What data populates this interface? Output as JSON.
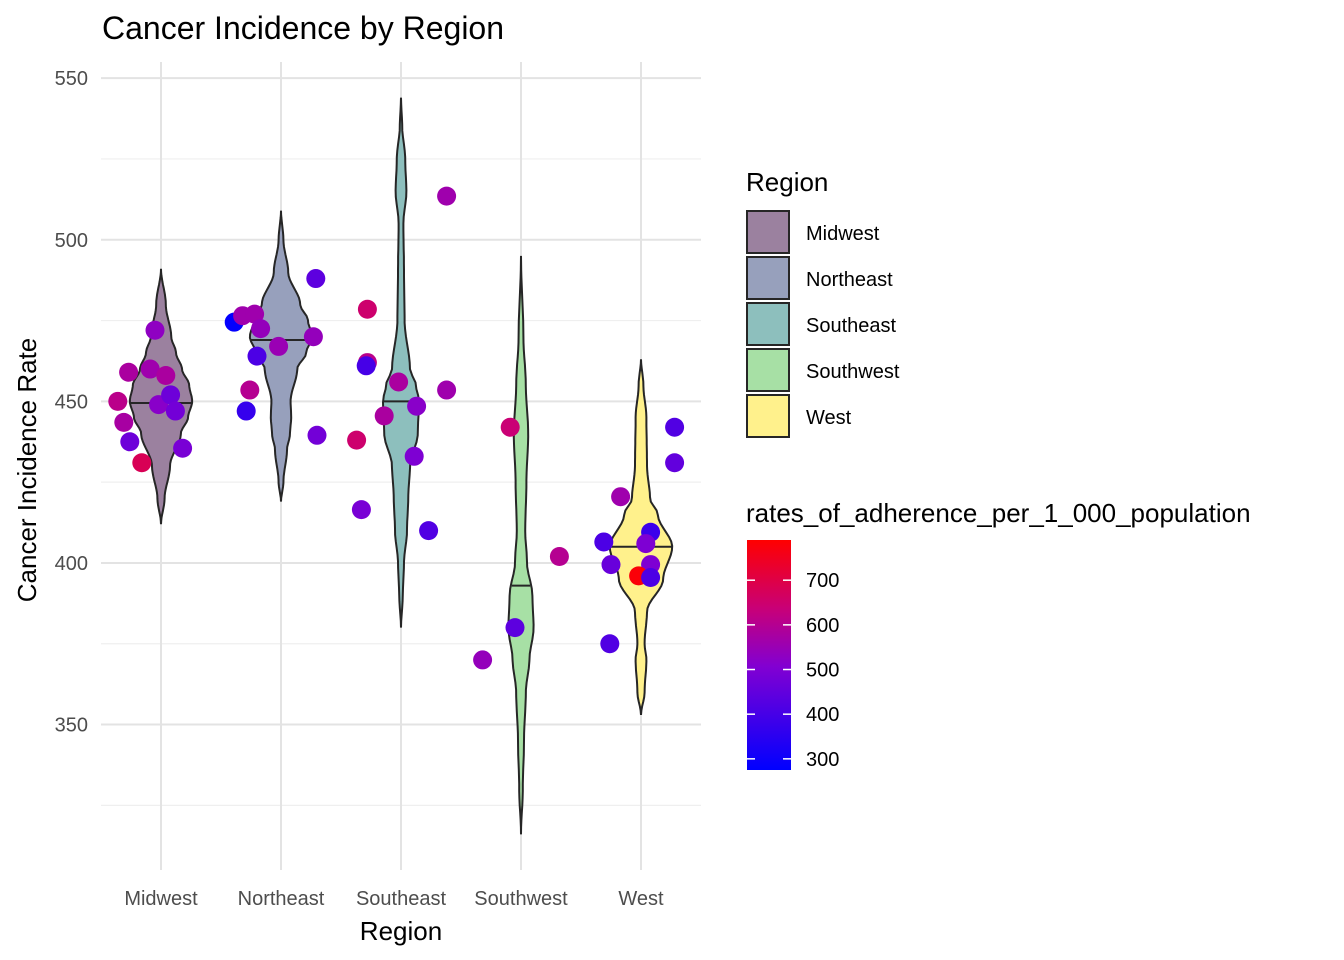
{
  "chart_data": {
    "type": "violin",
    "title": "Cancer Incidence by Region",
    "xlabel": "Region",
    "ylabel": "Cancer Incidence Rate",
    "categories": [
      "Midwest",
      "Northeast",
      "Southeast",
      "Southwest",
      "West"
    ],
    "ylim": [
      305,
      555
    ],
    "yticks": [
      350,
      400,
      450,
      500,
      550
    ],
    "grid": true,
    "legend_fill": {
      "title": "Region",
      "placement": "right",
      "items": [
        {
          "label": "Midwest",
          "color": "#9B819F"
        },
        {
          "label": "Northeast",
          "color": "#97A0BC"
        },
        {
          "label": "Southeast",
          "color": "#8DBFBD"
        },
        {
          "label": "Southwest",
          "color": "#A7E0A5"
        },
        {
          "label": "West",
          "color": "#FFF18C"
        }
      ]
    },
    "legend_color": {
      "title": "rates_of_adherence_per_1_000_population",
      "placement": "right",
      "low_color": "#0000FF",
      "high_color": "#FF0000",
      "range": [
        275,
        790
      ],
      "ticks": [
        300,
        400,
        500,
        600,
        700
      ]
    },
    "violins": [
      {
        "region": "Midwest",
        "median": 449.5,
        "min": 412,
        "max": 491,
        "profile": [
          [
            412,
            0.0
          ],
          [
            420,
            0.06
          ],
          [
            430,
            0.15
          ],
          [
            440,
            0.33
          ],
          [
            445,
            0.45
          ],
          [
            450,
            0.52
          ],
          [
            455,
            0.47
          ],
          [
            460,
            0.35
          ],
          [
            465,
            0.25
          ],
          [
            470,
            0.17
          ],
          [
            480,
            0.08
          ],
          [
            491,
            0.0
          ]
        ]
      },
      {
        "region": "Northeast",
        "median": 469,
        "min": 419,
        "max": 509,
        "profile": [
          [
            419,
            0.0
          ],
          [
            425,
            0.04
          ],
          [
            435,
            0.1
          ],
          [
            440,
            0.15
          ],
          [
            445,
            0.17
          ],
          [
            450,
            0.16
          ],
          [
            460,
            0.27
          ],
          [
            465,
            0.42
          ],
          [
            470,
            0.52
          ],
          [
            475,
            0.45
          ],
          [
            480,
            0.32
          ],
          [
            490,
            0.12
          ],
          [
            500,
            0.04
          ],
          [
            509,
            0.0
          ]
        ]
      },
      {
        "region": "Southeast",
        "median": 450,
        "min": 380,
        "max": 544,
        "profile": [
          [
            380,
            0.0
          ],
          [
            390,
            0.03
          ],
          [
            400,
            0.05
          ],
          [
            410,
            0.1
          ],
          [
            420,
            0.12
          ],
          [
            430,
            0.15
          ],
          [
            440,
            0.28
          ],
          [
            450,
            0.3
          ],
          [
            455,
            0.25
          ],
          [
            460,
            0.15
          ],
          [
            475,
            0.06
          ],
          [
            490,
            0.05
          ],
          [
            505,
            0.04
          ],
          [
            515,
            0.09
          ],
          [
            525,
            0.07
          ],
          [
            535,
            0.02
          ],
          [
            544,
            0.0
          ]
        ]
      },
      {
        "region": "Southwest",
        "median": 393,
        "min": 316,
        "max": 495,
        "profile": [
          [
            316,
            0.0
          ],
          [
            330,
            0.03
          ],
          [
            345,
            0.05
          ],
          [
            360,
            0.08
          ],
          [
            370,
            0.14
          ],
          [
            380,
            0.21
          ],
          [
            390,
            0.19
          ],
          [
            400,
            0.1
          ],
          [
            410,
            0.07
          ],
          [
            425,
            0.09
          ],
          [
            440,
            0.12
          ],
          [
            455,
            0.08
          ],
          [
            470,
            0.04
          ],
          [
            495,
            0.0
          ]
        ]
      },
      {
        "region": "West",
        "median": 405,
        "min": 353,
        "max": 463,
        "profile": [
          [
            353,
            0.0
          ],
          [
            360,
            0.06
          ],
          [
            370,
            0.09
          ],
          [
            375,
            0.06
          ],
          [
            385,
            0.1
          ],
          [
            395,
            0.37
          ],
          [
            405,
            0.52
          ],
          [
            415,
            0.28
          ],
          [
            420,
            0.15
          ],
          [
            430,
            0.1
          ],
          [
            445,
            0.09
          ],
          [
            455,
            0.04
          ],
          [
            463,
            0.0
          ]
        ]
      }
    ],
    "points": [
      {
        "region": "Midwest",
        "x_offset": -0.36,
        "y": 450,
        "adherence": 610
      },
      {
        "region": "Midwest",
        "x_offset": -0.31,
        "y": 443.5,
        "adherence": 575
      },
      {
        "region": "Midwest",
        "x_offset": -0.26,
        "y": 437.5,
        "adherence": 470
      },
      {
        "region": "Midwest",
        "x_offset": -0.16,
        "y": 431,
        "adherence": 680
      },
      {
        "region": "Midwest",
        "x_offset": -0.27,
        "y": 459,
        "adherence": 580
      },
      {
        "region": "Midwest",
        "x_offset": -0.09,
        "y": 460,
        "adherence": 560
      },
      {
        "region": "Midwest",
        "x_offset": -0.05,
        "y": 472,
        "adherence": 530
      },
      {
        "region": "Midwest",
        "x_offset": 0.04,
        "y": 458,
        "adherence": 580
      },
      {
        "region": "Midwest",
        "x_offset": -0.02,
        "y": 449,
        "adherence": 520
      },
      {
        "region": "Midwest",
        "x_offset": 0.08,
        "y": 452,
        "adherence": 470
      },
      {
        "region": "Midwest",
        "x_offset": 0.12,
        "y": 447,
        "adherence": 480
      },
      {
        "region": "Midwest",
        "x_offset": 0.18,
        "y": 435.5,
        "adherence": 490
      },
      {
        "region": "Northeast",
        "x_offset": -0.39,
        "y": 474.5,
        "adherence": 280
      },
      {
        "region": "Northeast",
        "x_offset": -0.32,
        "y": 476.5,
        "adherence": 560
      },
      {
        "region": "Northeast",
        "x_offset": -0.22,
        "y": 477,
        "adherence": 560
      },
      {
        "region": "Northeast",
        "x_offset": -0.17,
        "y": 472.5,
        "adherence": 540
      },
      {
        "region": "Northeast",
        "x_offset": -0.2,
        "y": 464,
        "adherence": 410
      },
      {
        "region": "Northeast",
        "x_offset": -0.02,
        "y": 467,
        "adherence": 550
      },
      {
        "region": "Northeast",
        "x_offset": -0.26,
        "y": 453.5,
        "adherence": 600
      },
      {
        "region": "Northeast",
        "x_offset": -0.29,
        "y": 447,
        "adherence": 370
      },
      {
        "region": "Northeast",
        "x_offset": 0.27,
        "y": 470,
        "adherence": 540
      },
      {
        "region": "Northeast",
        "x_offset": 0.29,
        "y": 488,
        "adherence": 440
      },
      {
        "region": "Northeast",
        "x_offset": 0.3,
        "y": 439.5,
        "adherence": 480
      },
      {
        "region": "Southeast",
        "x_offset": -0.28,
        "y": 478.5,
        "adherence": 650
      },
      {
        "region": "Southeast",
        "x_offset": -0.28,
        "y": 462,
        "adherence": 610
      },
      {
        "region": "Southeast",
        "x_offset": -0.29,
        "y": 461,
        "adherence": 400
      },
      {
        "region": "Southeast",
        "x_offset": -0.02,
        "y": 456,
        "adherence": 580
      },
      {
        "region": "Southeast",
        "x_offset": 0.13,
        "y": 448.5,
        "adherence": 520
      },
      {
        "region": "Southeast",
        "x_offset": -0.14,
        "y": 445.5,
        "adherence": 580
      },
      {
        "region": "Southeast",
        "x_offset": 0.38,
        "y": 453.5,
        "adherence": 560
      },
      {
        "region": "Southeast",
        "x_offset": -0.37,
        "y": 438,
        "adherence": 650
      },
      {
        "region": "Southeast",
        "x_offset": 0.11,
        "y": 433,
        "adherence": 500
      },
      {
        "region": "Southeast",
        "x_offset": -0.33,
        "y": 416.5,
        "adherence": 490
      },
      {
        "region": "Southeast",
        "x_offset": 0.23,
        "y": 410,
        "adherence": 420
      },
      {
        "region": "Southeast",
        "x_offset": 0.38,
        "y": 513.5,
        "adherence": 560
      },
      {
        "region": "Southwest",
        "x_offset": -0.09,
        "y": 442,
        "adherence": 640
      },
      {
        "region": "Southwest",
        "x_offset": 0.32,
        "y": 402,
        "adherence": 600
      },
      {
        "region": "Southwest",
        "x_offset": -0.05,
        "y": 380,
        "adherence": 440
      },
      {
        "region": "Southwest",
        "x_offset": -0.32,
        "y": 370,
        "adherence": 540
      },
      {
        "region": "West",
        "x_offset": -0.31,
        "y": 406.5,
        "adherence": 410
      },
      {
        "region": "West",
        "x_offset": -0.25,
        "y": 399.5,
        "adherence": 460
      },
      {
        "region": "West",
        "x_offset": -0.17,
        "y": 420.5,
        "adherence": 560
      },
      {
        "region": "West",
        "x_offset": 0.08,
        "y": 409.5,
        "adherence": 380
      },
      {
        "region": "West",
        "x_offset": 0.04,
        "y": 406,
        "adherence": 500
      },
      {
        "region": "West",
        "x_offset": 0.08,
        "y": 399.5,
        "adherence": 500
      },
      {
        "region": "West",
        "x_offset": -0.02,
        "y": 396,
        "adherence": 780
      },
      {
        "region": "West",
        "x_offset": 0.08,
        "y": 395.5,
        "adherence": 410
      },
      {
        "region": "West",
        "x_offset": -0.26,
        "y": 375,
        "adherence": 420
      },
      {
        "region": "West",
        "x_offset": 0.28,
        "y": 442,
        "adherence": 420
      },
      {
        "region": "West",
        "x_offset": 0.28,
        "y": 431,
        "adherence": 450
      }
    ]
  }
}
